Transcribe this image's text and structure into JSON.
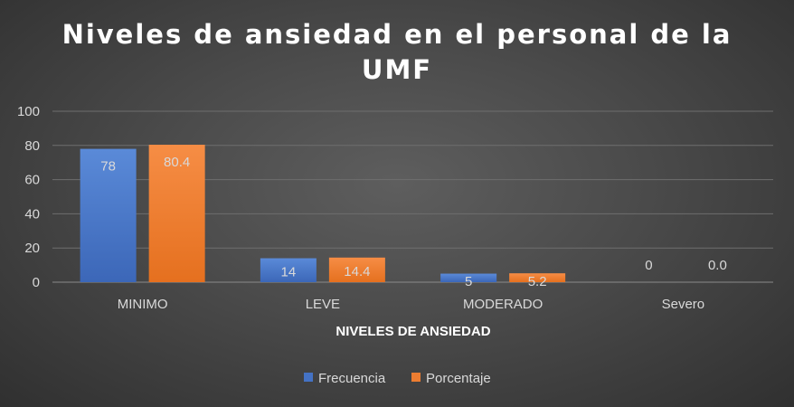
{
  "colors": {
    "frecuencia": "#4472c4",
    "porcentaje": "#ed7d31"
  },
  "chart_data": {
    "type": "bar",
    "title_lines": [
      "Niveles de ansiedad en el personal de la",
      "UMF"
    ],
    "xlabel": "NIVELES DE ANSIEDAD",
    "ylabel": "",
    "ylim": [
      0,
      100
    ],
    "yticks": [
      "0",
      "20",
      "40",
      "60",
      "80",
      "100"
    ],
    "categories": [
      "MINIMO",
      "LEVE",
      "MODERADO",
      "Severo"
    ],
    "series": [
      {
        "name": "Frecuencia",
        "values": [
          78,
          14,
          5,
          0
        ],
        "labels": [
          "78",
          "14",
          "5",
          "0"
        ]
      },
      {
        "name": "Porcentaje",
        "values": [
          80.4,
          14.4,
          5.2,
          0.0
        ],
        "labels": [
          "80.4",
          "14.4",
          "5.2",
          "0.0"
        ]
      }
    ],
    "grid": true,
    "legend_position": "bottom"
  }
}
